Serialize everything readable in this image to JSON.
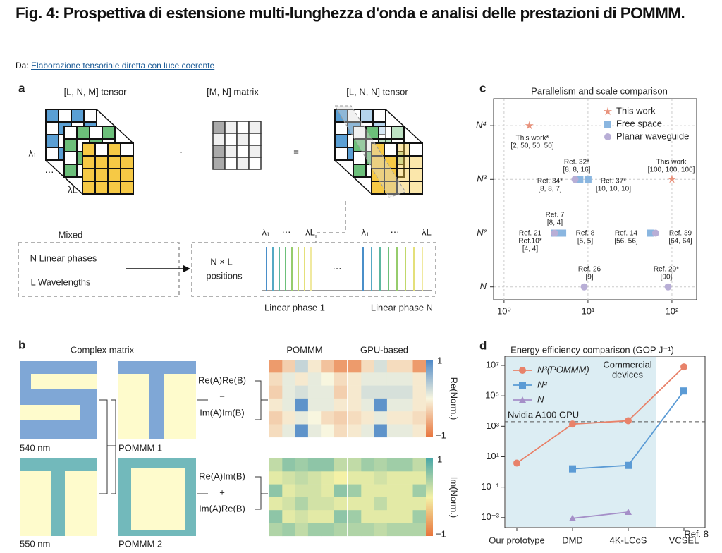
{
  "header": {
    "title": "Fig. 4: Prospettiva di estensione multi-lunghezza d'onda e analisi delle prestazioni di POMMM.",
    "source_prefix": "Da:",
    "source_link": "Elaborazione tensoriale diretta con luce coerente"
  },
  "panel_a": {
    "label": "a",
    "tensor_in": "[L, N, M] tensor",
    "matrix": "[M, N] matrix",
    "tensor_out": "[L, N, N] tensor",
    "dot": "·",
    "equals": "=",
    "lambda_1": "λ₁",
    "lambda_L": "λL",
    "dots": "⋯",
    "mixed": "Mixed",
    "linear_phases": "N Linear phases",
    "wavelengths": "L Wavelengths",
    "positions": [
      "N × L",
      "positions"
    ],
    "phase_1": "Linear phase 1",
    "phase_n": "Linear phase N",
    "ellipsis": "···"
  },
  "panel_b": {
    "label": "b",
    "complex_matrix": "Complex matrix",
    "nm540": "540 nm",
    "nm550": "550 nm",
    "pommm1": "POMMM 1",
    "pommm2": "POMMM 2",
    "re_terms": [
      "Re(A)Re(B)",
      "−",
      "Im(A)Im(B)"
    ],
    "im_terms": [
      "Re(A)Im(B)",
      "+",
      "Im(A)Re(B)"
    ],
    "col_pommm": "POMMM",
    "col_gpu": "GPU-based",
    "re_bar": {
      "label": "Re(Norm.)",
      "max": "1",
      "min": "−1",
      "colors": [
        "#e8743b",
        "#f8f6df",
        "#4d88c8"
      ]
    },
    "im_bar": {
      "label": "Im(Norm.)",
      "max": "1",
      "min": "−1",
      "colors": [
        "#e8743b",
        "#f4f1a6",
        "#4aa8a8"
      ]
    },
    "re_pommm": [
      [
        -0.7,
        -0.3,
        0.3,
        -0.1,
        -0.4,
        -0.7
      ],
      [
        -0.2,
        0.1,
        -0.1,
        0.1,
        0.0,
        -0.2
      ],
      [
        -0.3,
        0.1,
        0.2,
        0.1,
        0.1,
        -0.3
      ],
      [
        -0.1,
        0.1,
        0.9,
        0.1,
        0.1,
        -0.1
      ],
      [
        -0.3,
        -0.1,
        0.1,
        0.0,
        -0.2,
        -0.3
      ],
      [
        -0.2,
        0.1,
        0.9,
        0.1,
        0.0,
        -0.2
      ]
    ],
    "re_gpu": [
      [
        -0.7,
        -0.2,
        0.2,
        -0.2,
        -0.2,
        -0.7
      ],
      [
        -0.1,
        0.1,
        0.1,
        0.1,
        0.1,
        -0.1
      ],
      [
        -0.1,
        0.2,
        0.2,
        0.2,
        0.2,
        -0.1
      ],
      [
        -0.1,
        0.1,
        0.9,
        0.1,
        0.1,
        -0.1
      ],
      [
        -0.2,
        -0.1,
        0.1,
        -0.1,
        -0.1,
        -0.2
      ],
      [
        -0.1,
        0.1,
        0.9,
        0.1,
        0.1,
        -0.1
      ]
    ],
    "im_pommm": [
      [
        0.3,
        0.6,
        0.5,
        0.6,
        0.6,
        0.3
      ],
      [
        0.1,
        0.2,
        0.3,
        0.2,
        0.1,
        0.0
      ],
      [
        0.6,
        0.1,
        0.2,
        0.2,
        0.1,
        0.6
      ],
      [
        0.1,
        0.2,
        0.4,
        0.2,
        0.2,
        0.1
      ],
      [
        0.6,
        0.1,
        0.2,
        0.1,
        0.1,
        0.6
      ],
      [
        0.4,
        0.5,
        0.3,
        0.5,
        0.5,
        0.4
      ]
    ],
    "im_gpu": [
      [
        0.3,
        0.5,
        0.4,
        0.5,
        0.5,
        0.3
      ],
      [
        0.1,
        0.1,
        0.2,
        0.1,
        0.1,
        0.1
      ],
      [
        0.5,
        0.1,
        0.1,
        0.1,
        0.1,
        0.5
      ],
      [
        0.1,
        0.1,
        0.3,
        0.1,
        0.1,
        0.1
      ],
      [
        0.5,
        0.1,
        0.1,
        0.1,
        0.1,
        0.5
      ],
      [
        0.4,
        0.4,
        0.3,
        0.4,
        0.4,
        0.4
      ]
    ]
  },
  "chart_data": [
    {
      "type": "scatter",
      "panel": "c",
      "title": "Parallelism and scale comparison",
      "x_log": true,
      "grid": true,
      "legend": "upper right",
      "xlim": [
        0.75,
        197
      ],
      "xticks": [
        {
          "value": 1,
          "label": "10⁰"
        },
        {
          "value": 10,
          "label": "10¹"
        },
        {
          "value": 100,
          "label": "10²"
        }
      ],
      "ylim": [
        0.76,
        4.5
      ],
      "yticks": [
        {
          "value": 1,
          "label": "N"
        },
        {
          "value": 2,
          "label": "N²"
        },
        {
          "value": 3,
          "label": "N³"
        },
        {
          "value": 4,
          "label": "N⁴"
        }
      ],
      "series": [
        {
          "name": "This work",
          "color": "#e8927c",
          "marker": "star",
          "x": [
            2,
            100
          ],
          "values": [
            4,
            3
          ]
        },
        {
          "name": "Free space",
          "color": "#8ab6e0",
          "marker": "square",
          "x": [
            8,
            10,
            4,
            4.5,
            5,
            56
          ],
          "values": [
            3,
            3,
            2,
            2,
            2,
            2
          ]
        },
        {
          "name": "Planar waveguide",
          "color": "#b8aed6",
          "marker": "circle",
          "x": [
            7,
            4,
            64,
            9,
            90
          ],
          "values": [
            3,
            2,
            2,
            1,
            1
          ]
        }
      ],
      "annotations": [
        [
          "This work*",
          "[2, 50, 50, 50]"
        ],
        [
          "This work",
          "[100, 100, 100]"
        ],
        [
          "Ref. 32*",
          "[8, 8, 16]"
        ],
        [
          "Ref. 34*",
          "[8, 8, 7]"
        ],
        [
          "Ref. 37*",
          "[10, 10, 10]"
        ],
        [
          "Ref. 7",
          "[8, 4]"
        ],
        [
          "Ref. 21",
          "Ref.10*",
          "[4, 4]"
        ],
        [
          "Ref. 8",
          "[5, 5]"
        ],
        [
          "Ref. 14",
          "[56, 56]"
        ],
        [
          "Ref. 39",
          "[64, 64]"
        ],
        [
          "Ref. 26",
          "[9]"
        ],
        [
          "Ref. 29*",
          "[90]"
        ]
      ]
    },
    {
      "type": "line",
      "panel": "d",
      "title": "Energy efficiency comparison (GOP J⁻¹)",
      "y_log": true,
      "legend": "upper left",
      "categories": [
        "Our prototype",
        "DMD",
        "4K-LCoS",
        "VCSEL"
      ],
      "category_note": "Ref. 8",
      "ylim": [
        0.00022,
        40000000
      ],
      "yticks": [
        {
          "value": 0.001,
          "label": "10⁻³"
        },
        {
          "value": 0.1,
          "label": "10⁻¹"
        },
        {
          "value": 10,
          "label": "10¹"
        },
        {
          "value": 1000,
          "label": "10³"
        },
        {
          "value": 100000,
          "label": "10⁵"
        },
        {
          "value": 10000000,
          "label": "10⁷"
        }
      ],
      "reference_line": {
        "label": "Nvidia A100 GPU",
        "value": 2000
      },
      "region_label": [
        "Commercial",
        "devices"
      ],
      "region_color": "#dcedf3",
      "series": [
        {
          "name": "N³(POMMM)",
          "color": "#e8826a",
          "marker": "circle",
          "values": [
            3.8,
            1400,
            2300,
            8000000
          ]
        },
        {
          "name": "N²",
          "color": "#5b9bd5",
          "marker": "square",
          "values": [
            null,
            1.6,
            2.7,
            210000
          ]
        },
        {
          "name": "N",
          "color": "#a58fc8",
          "marker": "triangle",
          "values": [
            null,
            0.0009,
            0.0023,
            null
          ]
        }
      ]
    }
  ]
}
